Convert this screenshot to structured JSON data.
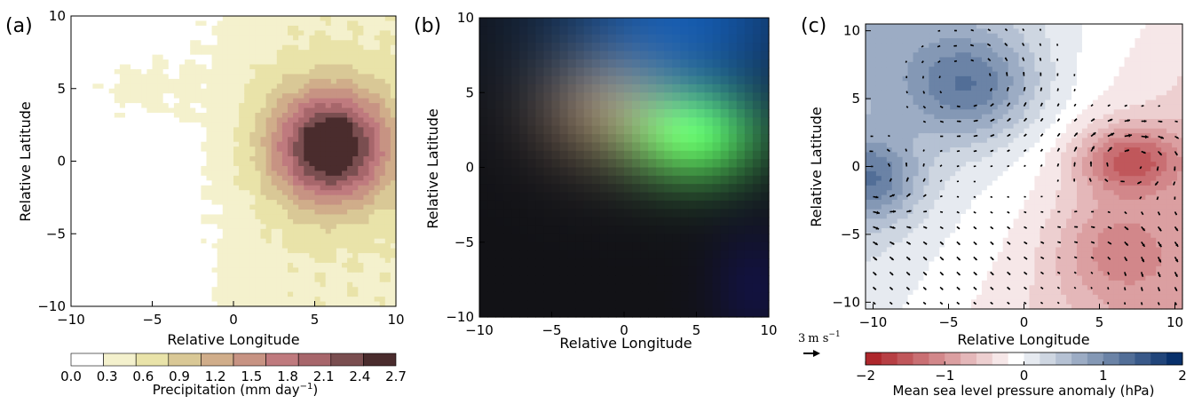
{
  "chart_data": [
    {
      "type": "heatmap",
      "panel_label": "(a)",
      "title": "",
      "xlabel": "Relative Longitude",
      "ylabel": "Relative Latitude",
      "xlim": [
        -10,
        10
      ],
      "ylim": [
        -10,
        10
      ],
      "x_ticks": [
        "−10",
        "−5",
        "0",
        "5",
        "10"
      ],
      "y_ticks": [
        "−10",
        "−5",
        "0",
        "5",
        "10"
      ],
      "colorbar": {
        "label_main": "Precipitation (mm day",
        "label_sup": "−1",
        "label_end": ")",
        "levels": [
          0.0,
          0.3,
          0.6,
          0.9,
          1.2,
          1.5,
          1.8,
          2.1,
          2.4,
          2.7
        ],
        "tick_labels": [
          "0.0",
          "0.3",
          "0.6",
          "0.9",
          "1.2",
          "1.5",
          "1.8",
          "2.1",
          "2.4",
          "2.7"
        ],
        "colors": [
          "#ffffff",
          "#f4f1cd",
          "#e9e3a9",
          "#d9c896",
          "#d0ad8a",
          "#c79383",
          "#bf7a7e",
          "#a7666b",
          "#7a4e50",
          "#4a2c2d"
        ]
      },
      "feature": {
        "max_center": [
          6.0,
          1.0
        ],
        "max_value": 2.7
      }
    },
    {
      "type": "heatmap",
      "panel_label": "(b)",
      "title": "",
      "xlabel": "Relative Longitude",
      "ylabel": "Relative Latitude",
      "xlim": [
        -10,
        10
      ],
      "ylim": [
        -10,
        10
      ],
      "x_ticks": [
        "−10",
        "−5",
        "0",
        "5",
        "10"
      ],
      "y_ticks": [
        "−10",
        "−5",
        "0",
        "5",
        "10"
      ],
      "grid_cells": 36,
      "channels": {
        "green_center": [
          5.0,
          2.0
        ],
        "red_center": [
          -1.0,
          4.0
        ],
        "blue_center": [
          4.0,
          10.0
        ]
      }
    },
    {
      "type": "heatmap",
      "panel_label": "(c)",
      "title": "",
      "xlabel": "Relative Longitude",
      "ylabel": "Relative Latitude",
      "xlim": [
        -10.5,
        10.5
      ],
      "ylim": [
        -10.5,
        10.5
      ],
      "x_ticks": [
        "−10",
        "−5",
        "0",
        "5",
        "10"
      ],
      "y_ticks": [
        "−10",
        "−5",
        "0",
        "5",
        "10"
      ],
      "overlay": "wind vectors",
      "reference_vector": {
        "speed_value": "3",
        "speed_unit": "m s",
        "speed_sup": "−1"
      },
      "colorbar": {
        "label": "Mean sea level pressure anomaly (hPa)",
        "range": [
          -2,
          2
        ],
        "tick_labels": [
          "−2",
          "−1",
          "0",
          "1",
          "2"
        ],
        "negative_color": "#a50f15",
        "positive_color": "#08306b"
      },
      "features": {
        "low_center": [
          7.0,
          0.5
        ],
        "high_center": [
          -3.5,
          6.0
        ],
        "secondary_high": [
          -10.0,
          -1.0
        ]
      }
    }
  ]
}
